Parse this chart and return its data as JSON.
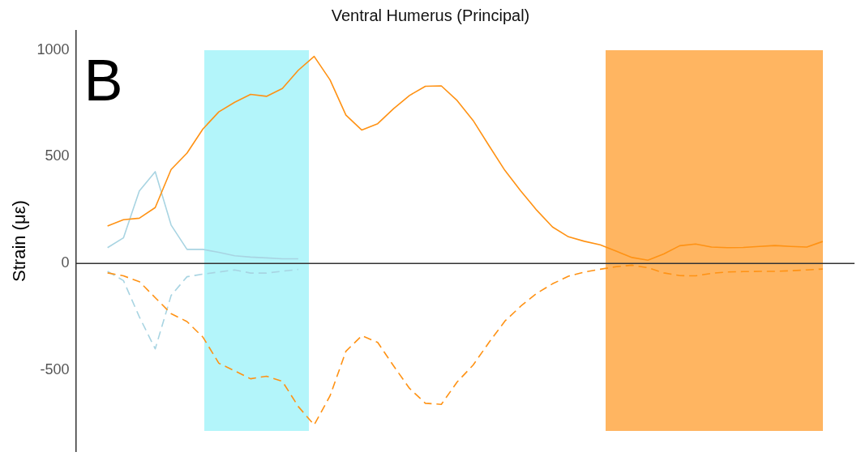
{
  "chart_data": {
    "type": "line",
    "title": "Ventral Humerus (Principal)",
    "ylabel": "Strain (με)",
    "annotations": [
      "B"
    ],
    "categories": [
      null,
      null,
      null,
      null,
      null,
      null,
      null,
      null,
      null,
      null,
      null,
      null,
      null,
      null,
      null,
      null,
      null,
      null,
      null,
      null,
      null,
      null,
      null,
      null,
      null,
      null,
      null,
      null,
      null,
      null,
      null,
      null,
      null,
      null,
      null,
      null,
      null,
      null,
      null,
      null,
      null,
      null,
      null,
      null,
      null,
      null,
      null,
      null,
      null,
      null
    ],
    "ylim": [
      -880,
      1090
    ],
    "yticks": [
      -500,
      0,
      500,
      1000
    ],
    "tick_labels": "y",
    "grid": false,
    "legend": false,
    "marker": "none",
    "ref_lines": [
      {
        "axis": "y",
        "value": 0,
        "color": "#333333"
      }
    ],
    "series": [
      {
        "color": "#ff9214",
        "line_style": "solid",
        "values": [
          null,
          null,
          176,
          205,
          212,
          262,
          440,
          517,
          630,
          710,
          755,
          792,
          783,
          820,
          905,
          970,
          860,
          695,
          625,
          655,
          725,
          787,
          830,
          832,
          763,
          670,
          552,
          436,
          340,
          250,
          171,
          125,
          104,
          87,
          58,
          28,
          15,
          45,
          83,
          91,
          77,
          74,
          75,
          80,
          84,
          80,
          77,
          103,
          null,
          null
        ]
      },
      {
        "color": "#ff9214",
        "line_style": "dashed",
        "values": [
          null,
          null,
          -44,
          -58,
          -85,
          -160,
          -235,
          -272,
          -345,
          -467,
          -503,
          -540,
          -528,
          -552,
          -670,
          -756,
          -620,
          -411,
          -338,
          -370,
          -480,
          -585,
          -655,
          -660,
          -555,
          -476,
          -370,
          -270,
          -200,
          -140,
          -95,
          -60,
          -40,
          -27,
          -15,
          -8,
          -20,
          -44,
          -57,
          -58,
          -46,
          -40,
          -38,
          -37,
          -37,
          -34,
          -30,
          -26,
          null,
          null
        ]
      },
      {
        "color": "#a8d4e2",
        "line_style": "solid",
        "values": [
          null,
          null,
          74,
          120,
          340,
          430,
          180,
          66,
          66,
          52,
          36,
          30,
          26,
          22,
          22,
          null,
          null,
          null,
          null,
          null,
          null,
          null,
          null,
          null,
          null,
          null,
          null,
          null,
          null,
          null,
          null,
          null,
          null,
          null,
          null,
          null,
          null,
          null,
          null,
          null,
          null,
          null,
          null,
          null,
          null,
          null,
          null,
          null,
          null,
          null
        ]
      },
      {
        "color": "#a8d4e2",
        "line_style": "dashed",
        "values": [
          null,
          null,
          -37,
          -80,
          -250,
          -400,
          -150,
          -62,
          -50,
          -40,
          -30,
          -45,
          -45,
          -36,
          -28,
          null,
          null,
          null,
          null,
          null,
          null,
          null,
          null,
          null,
          null,
          null,
          null,
          null,
          null,
          null,
          null,
          null,
          null,
          null,
          null,
          null,
          null,
          null,
          null,
          null,
          null,
          null,
          null,
          null,
          null,
          null,
          null,
          null,
          null,
          null
        ]
      }
    ]
  }
}
